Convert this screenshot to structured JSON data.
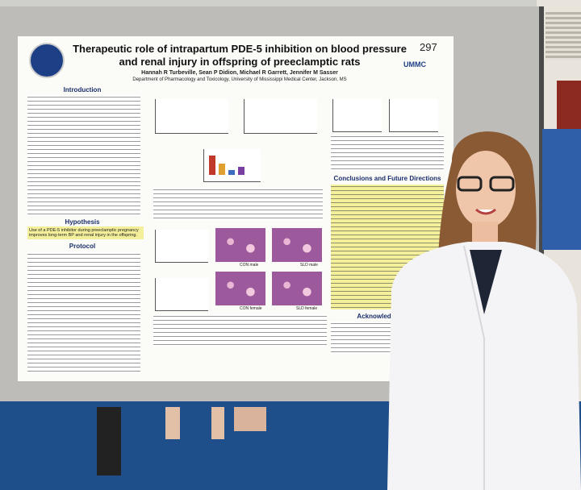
{
  "poster": {
    "number": "297",
    "title": "Therapeutic role of intrapartum PDE-5 inhibition on blood pressure and renal injury in offspring of preeclamptic rats",
    "authors": "Hannah R Turbeville, Sean P Didion, Michael R Garrett, Jennifer M Sasser",
    "affiliation": "Department of Pharmacology and Toxicology, University of Mississippi Medical Center, Jackson, MS",
    "logo": "UMMC",
    "sections": {
      "introduction": "Introduction",
      "hypothesis": "Hypothesis",
      "hypothesis_text": "Use of a PDE-5 inhibitor during preeclamptic pregnancy improves long-term BP and renal injury in the offspring.",
      "protocol": "Protocol",
      "conclusions": "Conclusions and Future Directions",
      "acknowledgements": "Acknowledgements"
    },
    "figure_labels": [
      "CON male",
      "SLD male",
      "CON female",
      "SLD female"
    ]
  }
}
